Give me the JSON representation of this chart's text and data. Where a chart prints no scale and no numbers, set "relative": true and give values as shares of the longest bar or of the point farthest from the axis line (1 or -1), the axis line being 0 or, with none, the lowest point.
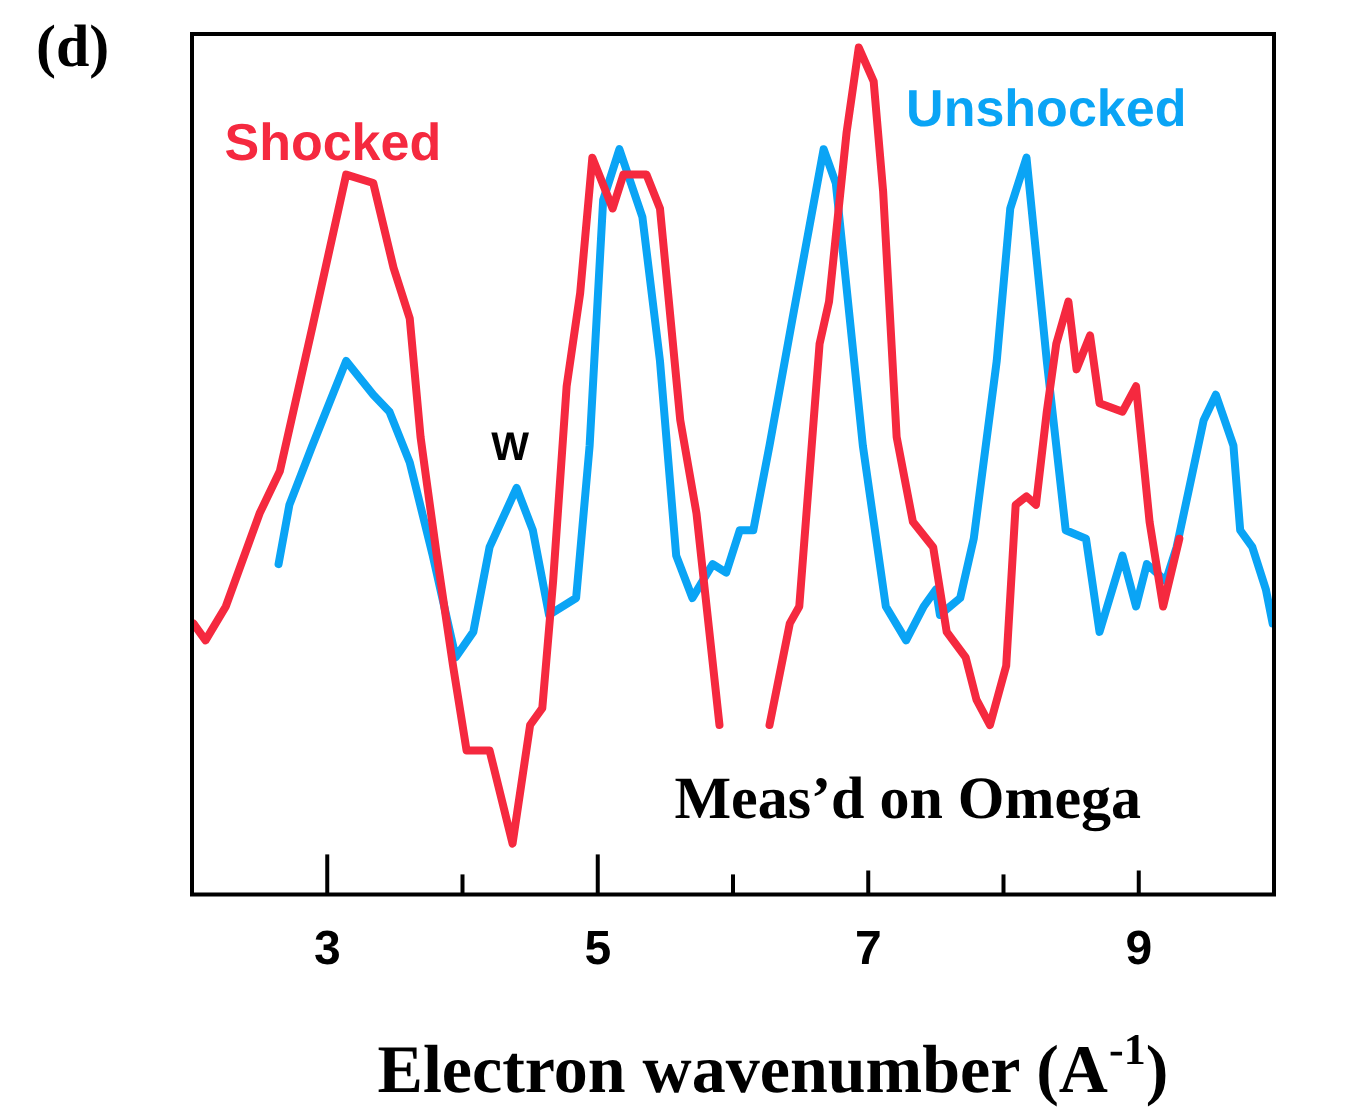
{
  "chart_data": {
    "type": "line",
    "relative": true,
    "xlabel": "Electron wavenumber (A$^{-1}$)",
    "xlim": [
      2,
      10
    ],
    "xticks": [
      3,
      {
        "value": 4,
        "label": null
      },
      5,
      {
        "value": 6,
        "label": null
      },
      7,
      {
        "value": 8,
        "label": null
      },
      9
    ],
    "marker": "none",
    "line_style": "solid",
    "legend": false,
    "annotations": [
      "(d)",
      "W",
      "Meas’d on Omega"
    ],
    "series": [
      {
        "name": "Shocked",
        "color": "#f5293f",
        "x": [
          2.01,
          2.1,
          2.25,
          2.5,
          2.65,
          2.89,
          3.14,
          3.34,
          3.49,
          3.61,
          3.69,
          3.81,
          3.93,
          4.03,
          4.2,
          4.37,
          4.5,
          4.59,
          4.67,
          4.77,
          4.87,
          4.96,
          5.11,
          5.19,
          5.36,
          5.46,
          5.61,
          5.73,
          5.9,
          6.1,
          6.27,
          6.42,
          6.49,
          6.64,
          6.71,
          6.84,
          6.93,
          7.04,
          7.11,
          7.21,
          7.33,
          7.48,
          7.58,
          7.72,
          7.8,
          7.9,
          8.02,
          8.09,
          8.17,
          8.24,
          8.32,
          8.39,
          8.48,
          8.54,
          8.64,
          8.71,
          8.88,
          8.98,
          9.08,
          9.18,
          9.3
        ],
        "values": [
          0.32,
          0.3,
          0.34,
          0.45,
          0.5,
          0.67,
          0.85,
          0.84,
          0.74,
          0.68,
          0.54,
          0.4,
          0.27,
          0.17,
          0.17,
          0.06,
          0.2,
          0.22,
          0.37,
          0.6,
          0.71,
          0.87,
          0.81,
          0.85,
          0.85,
          0.81,
          0.56,
          0.45,
          0.2,
          null,
          0.2,
          0.32,
          0.34,
          0.65,
          0.7,
          0.9,
          1,
          0.96,
          0.83,
          0.54,
          0.44,
          0.41,
          0.31,
          0.28,
          0.23,
          0.2,
          0.27,
          0.46,
          0.47,
          0.46,
          0.57,
          0.65,
          0.7,
          0.62,
          0.66,
          0.58,
          0.57,
          0.6,
          0.44,
          0.34,
          0.42
        ]
      },
      {
        "name": "Unshocked",
        "color": "#0aa4f5",
        "x": [
          2.64,
          2.72,
          2.89,
          3.14,
          3.34,
          3.46,
          3.61,
          3.78,
          3.95,
          4.08,
          4.2,
          4.4,
          4.52,
          4.64,
          4.84,
          4.94,
          5.04,
          5.16,
          5.33,
          5.46,
          5.58,
          5.7,
          5.85,
          5.95,
          6.05,
          6.15,
          6.27,
          6.44,
          6.67,
          6.76,
          6.96,
          7.13,
          7.28,
          7.41,
          7.5,
          7.53,
          7.68,
          7.78,
          7.95,
          8.05,
          8.17,
          8.32,
          8.46,
          8.61,
          8.71,
          8.88,
          8.98,
          9.06,
          9.2,
          9.28,
          9.48,
          9.57,
          9.7,
          9.75,
          9.84,
          9.94,
          9.99
        ],
        "values": [
          0.39,
          0.46,
          0.53,
          0.63,
          0.59,
          0.57,
          0.51,
          0.4,
          0.28,
          0.31,
          0.41,
          0.48,
          0.43,
          0.33,
          0.35,
          0.53,
          0.82,
          0.88,
          0.8,
          0.63,
          0.4,
          0.35,
          0.39,
          0.38,
          0.43,
          0.43,
          0.53,
          0.68,
          0.88,
          0.84,
          0.53,
          0.34,
          0.3,
          0.34,
          0.36,
          0.33,
          0.35,
          0.42,
          0.63,
          0.81,
          0.87,
          0.63,
          0.43,
          0.42,
          0.31,
          0.4,
          0.34,
          0.39,
          0.37,
          0.41,
          0.56,
          0.59,
          0.53,
          0.43,
          0.41,
          0.36,
          0.32
        ]
      }
    ]
  }
}
